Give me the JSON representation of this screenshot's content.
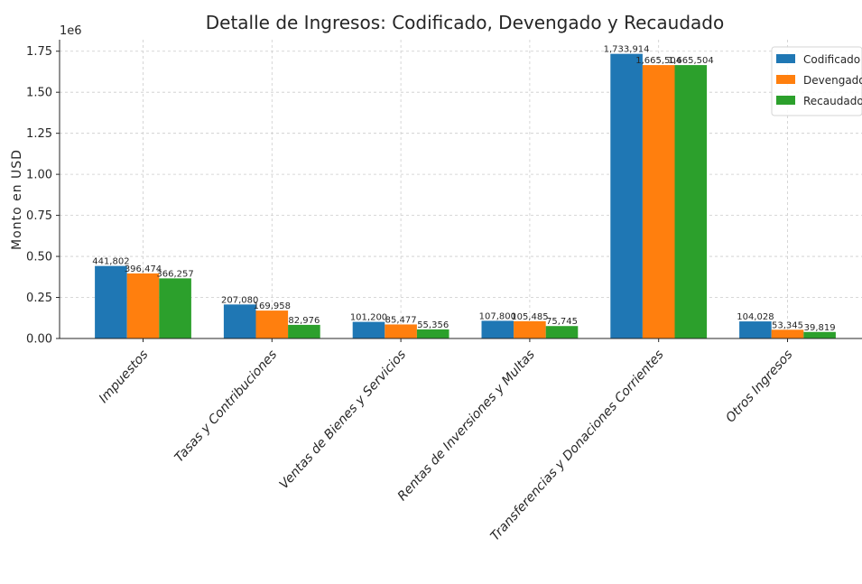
{
  "chart_data": {
    "type": "bar",
    "title": "Detalle de Ingresos: Codificado, Devengado y Recaudado",
    "ylabel": "Monto en USD",
    "xlabel": "",
    "y_scale_label": "1e6",
    "ylim": [
      0,
      1820000
    ],
    "y_ticks": [
      0,
      250000,
      500000,
      750000,
      1000000,
      1250000,
      1500000,
      1750000
    ],
    "y_tick_labels": [
      "0.00",
      "0.25",
      "0.50",
      "0.75",
      "1.00",
      "1.25",
      "1.50",
      "1.75"
    ],
    "grid": true,
    "legend_position": "top-right",
    "categories": [
      "Impuestos",
      "Tasas y Contribuciones",
      "Ventas de Bienes y Servicios",
      "Rentas de Inversiones y Multas",
      "Transferencias y Donaciones Corrientes",
      "Otros Ingresos"
    ],
    "series": [
      {
        "name": "Codificado",
        "color": "#1f77b4",
        "values": [
          441802,
          207080,
          101200,
          107800,
          1733914,
          104028
        ],
        "labels": [
          "441,802",
          "207,080",
          "101,200",
          "107,800",
          "1,733,914",
          "104,028"
        ]
      },
      {
        "name": "Devengado",
        "color": "#ff7f0e",
        "values": [
          396474,
          169958,
          85477,
          105485,
          1665504,
          53345
        ],
        "labels": [
          "396,474",
          "169,958",
          "85,477",
          "105,485",
          "1,665,504",
          "53,345"
        ]
      },
      {
        "name": "Recaudado",
        "color": "#2ca02c",
        "values": [
          366257,
          82976,
          55356,
          75745,
          1665504,
          39819
        ],
        "labels": [
          "366,257",
          "82,976",
          "55,356",
          "75,745",
          "1,665,504",
          "39,819"
        ]
      }
    ]
  }
}
